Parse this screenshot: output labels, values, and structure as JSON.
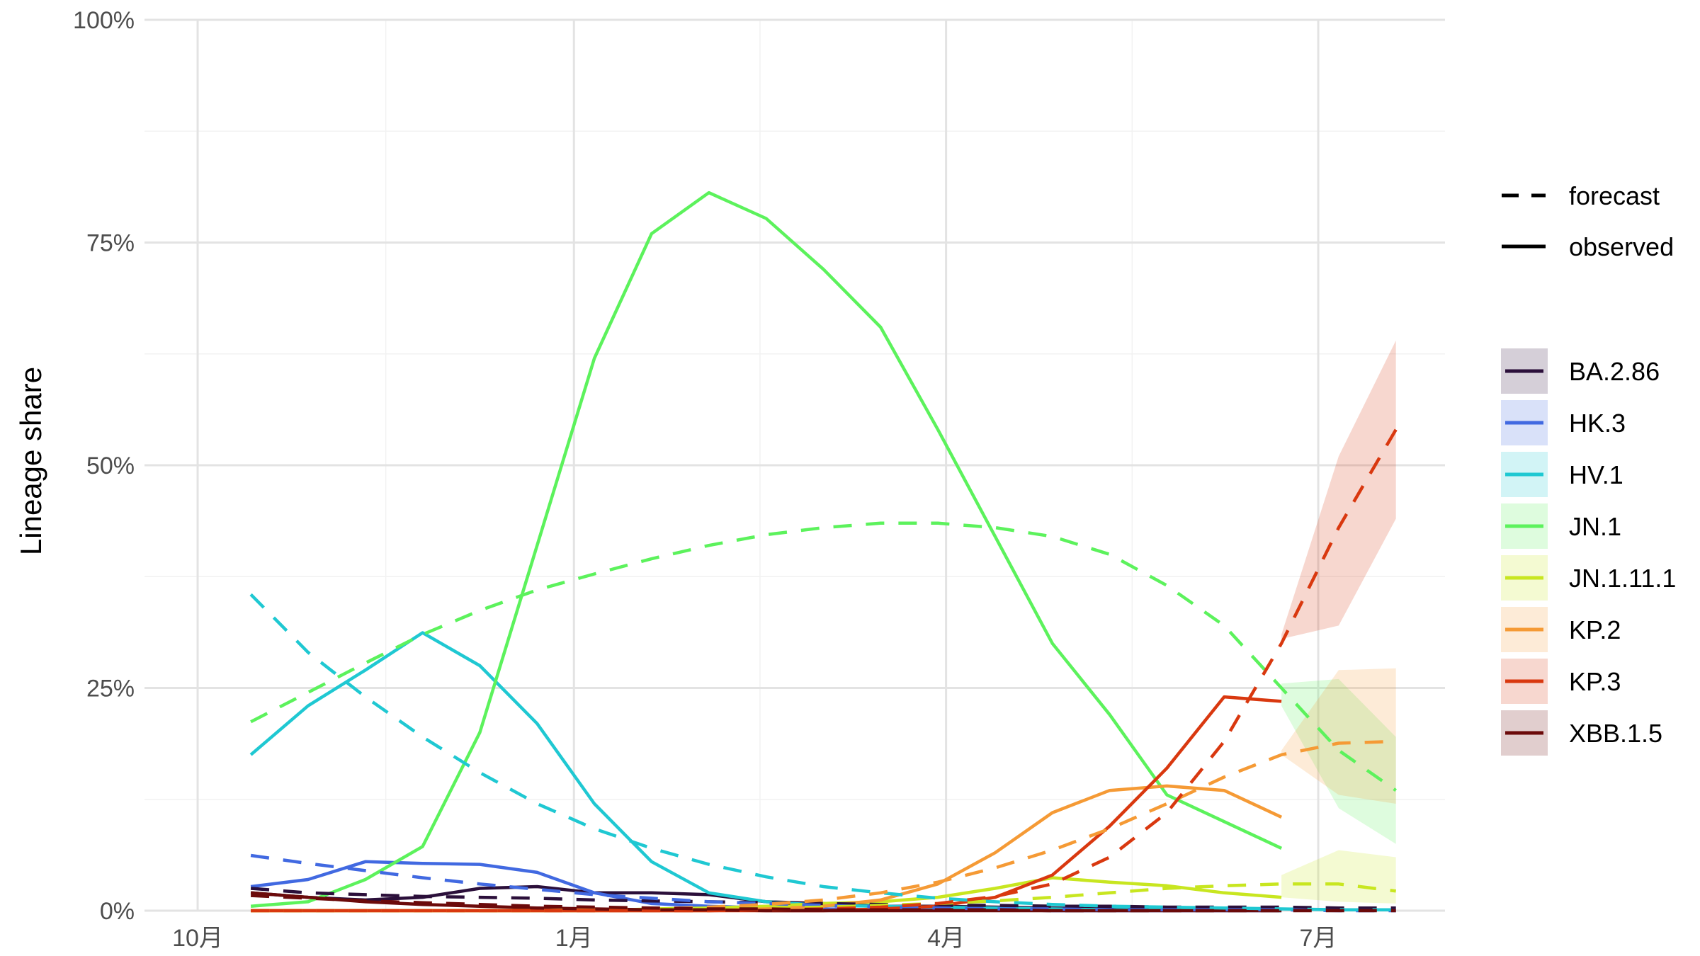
{
  "chart_data": {
    "type": "line",
    "ylabel": "Lineage share",
    "xlabel": "",
    "ylim": [
      0,
      1
    ],
    "y_ticks": [
      {
        "value": 0,
        "label": "0%"
      },
      {
        "value": 0.25,
        "label": "25%"
      },
      {
        "value": 0.5,
        "label": "50%"
      },
      {
        "value": 0.75,
        "label": "75%"
      },
      {
        "value": 1.0,
        "label": "100%"
      }
    ],
    "x_ticks": [
      {
        "date": "2023-10-01",
        "label": "10月"
      },
      {
        "date": "2024-01-01",
        "label": "1月"
      },
      {
        "date": "2024-04-01",
        "label": "4月"
      },
      {
        "date": "2024-07-01",
        "label": "7月"
      }
    ],
    "xlim": [
      "2023-09-18",
      "2024-08-01"
    ],
    "grid": true,
    "linetype_legend": [
      {
        "label": "forecast",
        "style": "dashed"
      },
      {
        "label": "observed",
        "style": "solid"
      }
    ],
    "legend_position": "right",
    "dates": [
      "2023-10-14",
      "2023-10-28",
      "2023-11-11",
      "2023-11-25",
      "2023-12-09",
      "2023-12-23",
      "2024-01-06",
      "2024-01-20",
      "2024-02-03",
      "2024-02-17",
      "2024-03-02",
      "2024-03-16",
      "2024-03-30",
      "2024-04-13",
      "2024-04-27",
      "2024-05-11",
      "2024-05-25",
      "2024-06-08",
      "2024-06-22",
      "2024-07-06",
      "2024-07-20"
    ],
    "series": [
      {
        "name": "BA.2.86",
        "color": "#2b0f3a",
        "observed": [
          0.02,
          0.015,
          0.012,
          0.015,
          0.025,
          0.027,
          0.02,
          0.02,
          0.018,
          0.01,
          0.008,
          0.005,
          0.005,
          0.004,
          0.003,
          0.002,
          0.001,
          0.001,
          0.001,
          null,
          null
        ],
        "forecast": [
          0.025,
          0.02,
          0.018,
          0.016,
          0.015,
          0.014,
          0.012,
          0.011,
          0.01,
          0.009,
          0.008,
          0.007,
          0.006,
          0.006,
          0.005,
          0.005,
          0.004,
          0.004,
          0.004,
          0.003,
          0.003
        ]
      },
      {
        "name": "HK.3",
        "color": "#4169e1",
        "observed": [
          0.027,
          0.035,
          0.055,
          0.053,
          0.052,
          0.043,
          0.02,
          0.008,
          0.005,
          0.003,
          0.002,
          0.001,
          0.001,
          0.001,
          0.0,
          0.0,
          0.0,
          0.0,
          0.0,
          null,
          null
        ],
        "forecast": [
          0.062,
          0.053,
          0.045,
          0.037,
          0.03,
          0.024,
          0.018,
          0.014,
          0.01,
          0.008,
          0.006,
          0.004,
          0.003,
          0.002,
          0.002,
          0.001,
          0.001,
          0.001,
          0.001,
          0.0,
          0.0
        ]
      },
      {
        "name": "HV.1",
        "color": "#1fc8d2",
        "observed": [
          0.175,
          0.23,
          0.27,
          0.312,
          0.275,
          0.21,
          0.12,
          0.055,
          0.02,
          0.01,
          0.006,
          0.005,
          0.004,
          0.003,
          0.002,
          0.001,
          0.001,
          0.001,
          0.0,
          null,
          null
        ],
        "forecast": [
          0.355,
          0.29,
          0.24,
          0.195,
          0.155,
          0.12,
          0.092,
          0.07,
          0.052,
          0.038,
          0.027,
          0.02,
          0.014,
          0.01,
          0.007,
          0.005,
          0.004,
          0.003,
          0.002,
          0.001,
          0.001
        ]
      },
      {
        "name": "JN.1",
        "color": "#5cf25c",
        "observed": [
          0.005,
          0.01,
          0.035,
          0.072,
          0.2,
          0.41,
          0.62,
          0.76,
          0.806,
          0.777,
          0.72,
          0.655,
          0.54,
          0.42,
          0.3,
          0.22,
          0.13,
          0.1,
          0.07,
          null,
          null
        ],
        "forecast": [
          0.212,
          0.245,
          0.278,
          0.31,
          0.337,
          0.36,
          0.378,
          0.395,
          0.41,
          0.422,
          0.43,
          0.435,
          0.435,
          0.43,
          0.42,
          0.4,
          0.365,
          0.32,
          0.25,
          0.18,
          0.135
        ],
        "band_lower": [
          null,
          null,
          null,
          null,
          null,
          null,
          null,
          null,
          null,
          null,
          null,
          null,
          null,
          null,
          null,
          null,
          null,
          null,
          0.23,
          0.115,
          0.075
        ],
        "band_upper": [
          null,
          null,
          null,
          null,
          null,
          null,
          null,
          null,
          null,
          null,
          null,
          null,
          null,
          null,
          null,
          null,
          null,
          null,
          0.255,
          0.26,
          0.195
        ]
      },
      {
        "name": "JN.1.11.1",
        "color": "#c8e620",
        "observed": [
          0.0,
          0.0,
          0.0,
          0.0,
          0.0,
          0.0,
          0.0,
          0.002,
          0.003,
          0.005,
          0.008,
          0.01,
          0.015,
          0.025,
          0.037,
          0.032,
          0.028,
          0.02,
          0.015,
          null,
          null
        ],
        "forecast": [
          0.0,
          0.0,
          0.0,
          0.0,
          0.0,
          0.0,
          0.001,
          0.001,
          0.002,
          0.003,
          0.004,
          0.006,
          0.008,
          0.011,
          0.015,
          0.02,
          0.025,
          0.028,
          0.03,
          0.03,
          0.022
        ],
        "band_lower": [
          null,
          null,
          null,
          null,
          null,
          null,
          null,
          null,
          null,
          null,
          null,
          null,
          null,
          null,
          null,
          null,
          null,
          null,
          0.015,
          0.01,
          0.008
        ],
        "band_upper": [
          null,
          null,
          null,
          null,
          null,
          null,
          null,
          null,
          null,
          null,
          null,
          null,
          null,
          null,
          null,
          null,
          null,
          null,
          0.04,
          0.068,
          0.06
        ]
      },
      {
        "name": "KP.2",
        "color": "#f59a35",
        "observed": [
          0.0,
          0.0,
          0.0,
          0.0,
          0.0,
          0.0,
          0.0,
          0.0,
          0.0,
          0.002,
          0.005,
          0.012,
          0.03,
          0.065,
          0.11,
          0.135,
          0.14,
          0.135,
          0.105,
          null,
          null
        ],
        "forecast": [
          0.0,
          0.0,
          0.0,
          0.0,
          0.0,
          0.0,
          0.001,
          0.002,
          0.004,
          0.007,
          0.012,
          0.02,
          0.032,
          0.048,
          0.068,
          0.092,
          0.12,
          0.15,
          0.175,
          0.188,
          0.19
        ],
        "band_lower": [
          null,
          null,
          null,
          null,
          null,
          null,
          null,
          null,
          null,
          null,
          null,
          null,
          null,
          null,
          null,
          null,
          null,
          null,
          0.175,
          0.13,
          0.12
        ],
        "band_upper": [
          null,
          null,
          null,
          null,
          null,
          null,
          null,
          null,
          null,
          null,
          null,
          null,
          null,
          null,
          null,
          null,
          null,
          null,
          0.18,
          0.27,
          0.272
        ]
      },
      {
        "name": "KP.3",
        "color": "#d9380f",
        "observed": [
          0.0,
          0.0,
          0.0,
          0.0,
          0.0,
          0.0,
          0.0,
          0.0,
          0.0,
          0.0,
          0.0,
          0.002,
          0.005,
          0.015,
          0.04,
          0.095,
          0.16,
          0.24,
          0.235,
          null,
          null
        ],
        "forecast": [
          0.0,
          0.0,
          0.0,
          0.0,
          0.0,
          0.0,
          0.0,
          0.0,
          0.0,
          0.001,
          0.002,
          0.004,
          0.008,
          0.016,
          0.03,
          0.06,
          0.11,
          0.19,
          0.3,
          0.43,
          0.54
        ],
        "band_lower": [
          null,
          null,
          null,
          null,
          null,
          null,
          null,
          null,
          null,
          null,
          null,
          null,
          null,
          null,
          null,
          null,
          null,
          null,
          0.305,
          0.32,
          0.44
        ],
        "band_upper": [
          null,
          null,
          null,
          null,
          null,
          null,
          null,
          null,
          null,
          null,
          null,
          null,
          null,
          null,
          null,
          null,
          null,
          null,
          0.31,
          0.51,
          0.64
        ]
      },
      {
        "name": "XBB.1.5",
        "color": "#6b0a0a",
        "observed": [
          0.02,
          0.015,
          0.01,
          0.007,
          0.005,
          0.003,
          0.002,
          0.001,
          0.001,
          0.0,
          0.0,
          0.0,
          0.0,
          0.0,
          0.0,
          0.0,
          0.0,
          0.0,
          0.0,
          null,
          null
        ],
        "forecast": [
          0.017,
          0.014,
          0.011,
          0.009,
          0.007,
          0.005,
          0.004,
          0.003,
          0.002,
          0.002,
          0.001,
          0.001,
          0.001,
          0.001,
          0.0,
          0.0,
          0.0,
          0.0,
          0.0,
          0.0,
          0.0
        ]
      }
    ]
  }
}
